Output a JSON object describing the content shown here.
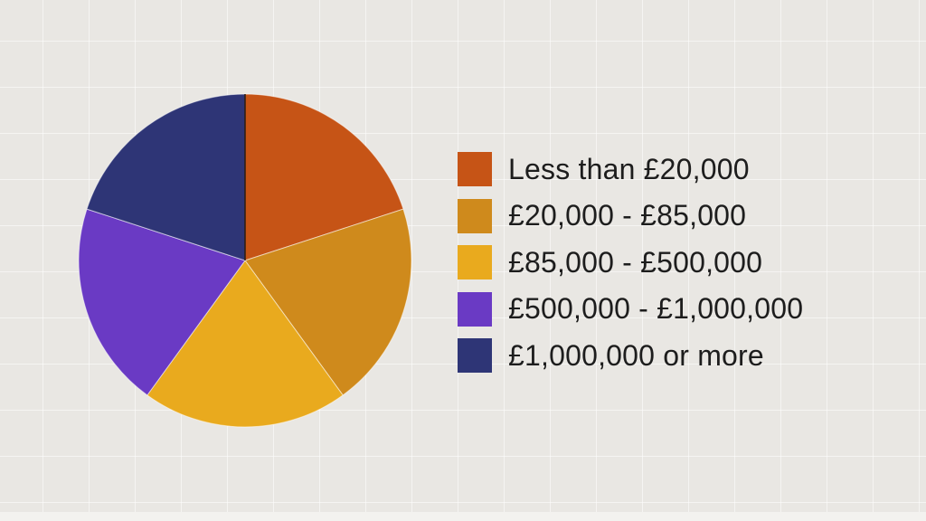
{
  "chart_data": {
    "type": "pie",
    "title": "",
    "legend_position": "right",
    "categories": [
      "Less than £20,000",
      "£20,000 - £85,000",
      "£85,000 - £500,000",
      "£500,000 - £1,000,000",
      "£1,000,000 or more"
    ],
    "values": [
      20,
      20,
      20,
      20,
      20
    ],
    "colors": [
      "#c65416",
      "#cf8a1c",
      "#e9aa1e",
      "#6a3ac4",
      "#2e3576"
    ]
  }
}
